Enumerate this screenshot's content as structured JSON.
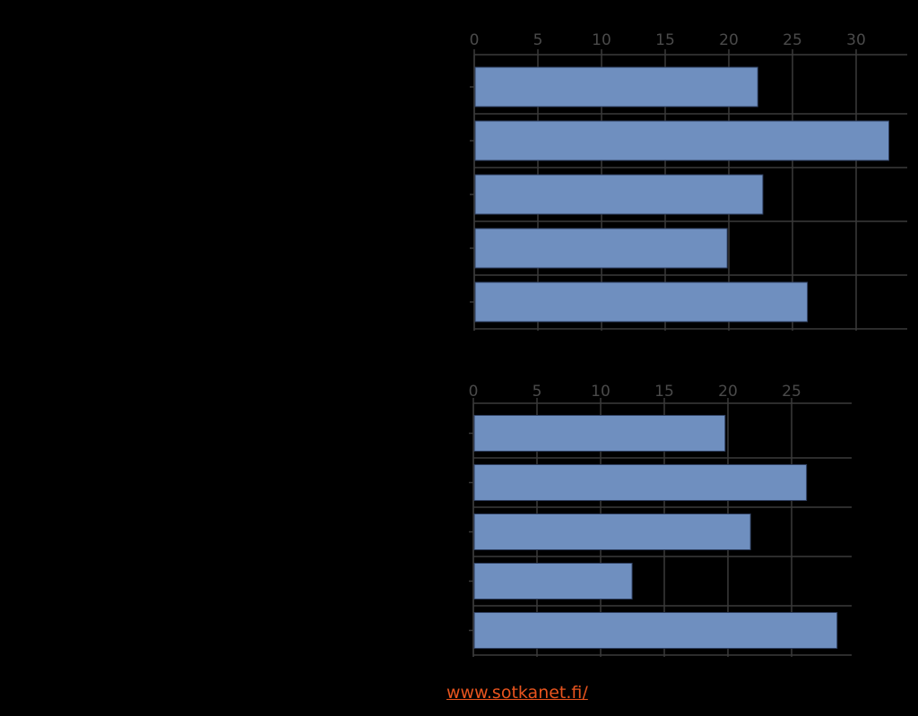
{
  "chart_data": [
    {
      "type": "bar",
      "orientation": "horizontal",
      "categories": [
        "",
        "",
        "",
        "",
        ""
      ],
      "values": [
        22.2,
        32.5,
        22.6,
        19.8,
        26.1
      ],
      "xlim": [
        0,
        34
      ],
      "ticks": [
        0,
        5,
        10,
        15,
        20,
        25,
        30
      ],
      "tick_labels": [
        "0",
        "5",
        "10",
        "15",
        "20",
        "25",
        "30"
      ],
      "axis_position": "top",
      "grid": true,
      "bar_color": "#6f8fbf"
    },
    {
      "type": "bar",
      "orientation": "horizontal",
      "categories": [
        "",
        "",
        "",
        "",
        ""
      ],
      "values": [
        19.7,
        26.1,
        21.7,
        12.4,
        28.5
      ],
      "xlim": [
        0,
        29.5
      ],
      "ticks": [
        0,
        5,
        10,
        15,
        20,
        25
      ],
      "tick_labels": [
        "0",
        "5",
        "10",
        "15",
        "20",
        "25"
      ],
      "axis_position": "top",
      "grid": true,
      "bar_color": "#6f8fbf"
    }
  ],
  "source": {
    "link_text": "www.sotkanet.fi/"
  },
  "colors": {
    "background": "#000000",
    "grid": "#3a3a3a",
    "tick_text": "#4a4a4a",
    "link": "#e8541e"
  }
}
